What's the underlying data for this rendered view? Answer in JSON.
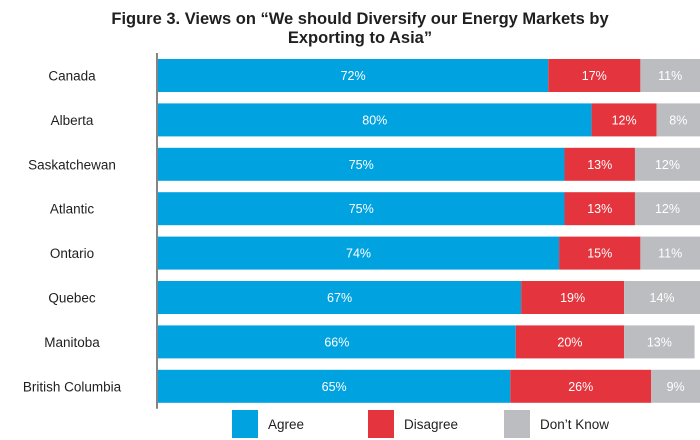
{
  "chart_data": {
    "type": "bar",
    "orientation": "horizontal",
    "stacked": true,
    "title": "Figure 3. Views on “We should Diversify our Energy Markets by Exporting to Asia”",
    "title_lines": [
      "Figure 3. Views on “We should Diversify our Energy Markets by",
      "Exporting to Asia”"
    ],
    "categories": [
      "Canada",
      "Alberta",
      "Saskatchewan",
      "Atlantic",
      "Ontario",
      "Quebec",
      "Manitoba",
      "British Columbia"
    ],
    "series": [
      {
        "name": "Agree",
        "color": "#00a3e0",
        "values": [
          72,
          80,
          75,
          75,
          74,
          67,
          66,
          65
        ]
      },
      {
        "name": "Disagree",
        "color": "#e4343d",
        "values": [
          17,
          12,
          13,
          13,
          15,
          19,
          20,
          26
        ]
      },
      {
        "name": "Don’t Know",
        "color": "#bcbdc0",
        "values": [
          11,
          8,
          12,
          12,
          11,
          14,
          13,
          9
        ]
      }
    ],
    "value_suffix": "%",
    "xlim": [
      0,
      100
    ],
    "grid": false,
    "legend_position": "bottom"
  }
}
